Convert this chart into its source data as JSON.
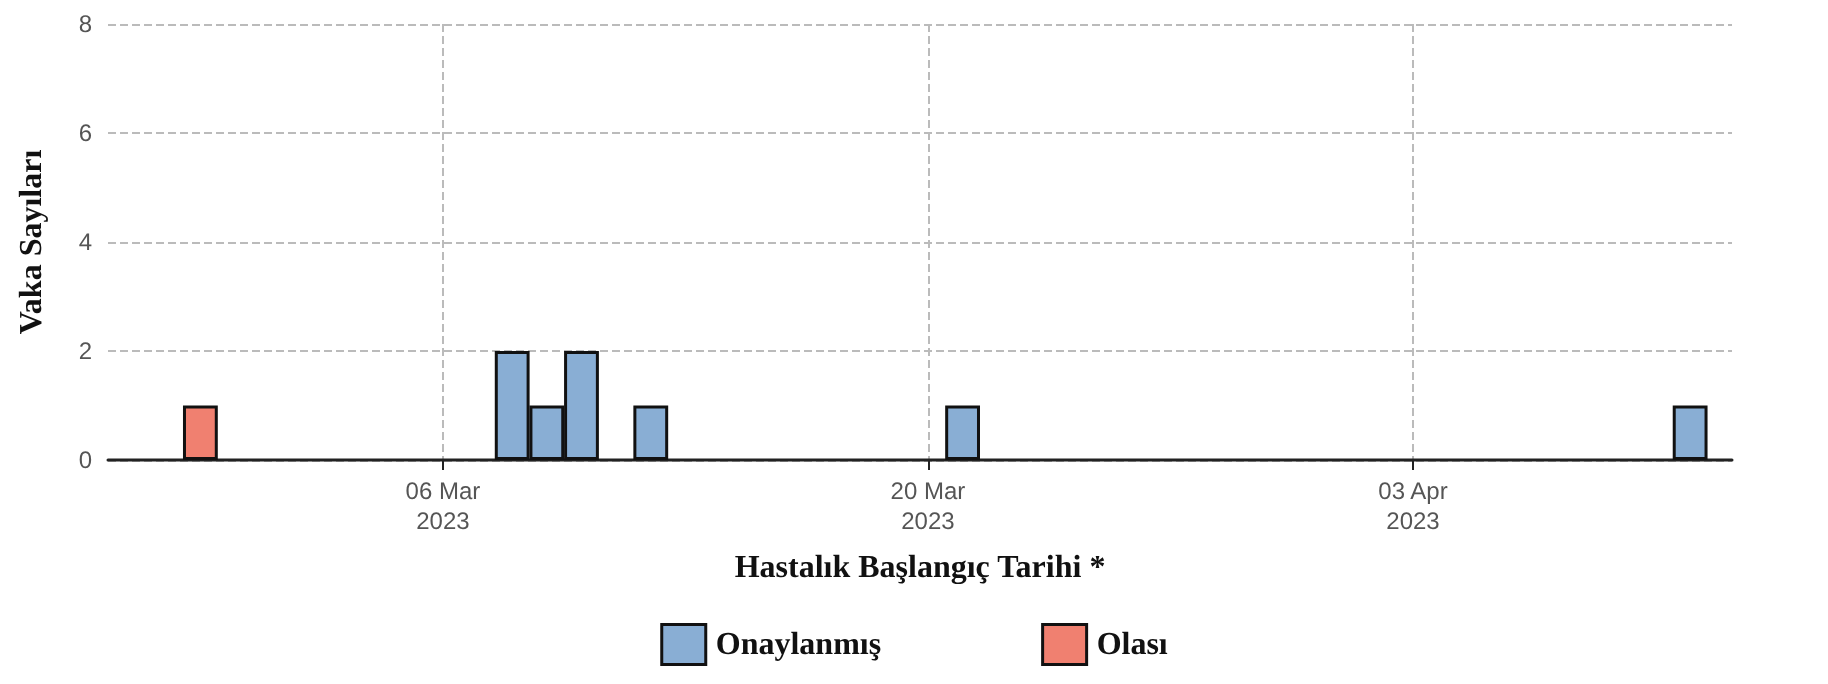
{
  "chart_data": {
    "type": "bar",
    "xlabel": "Hastalık Başlangıç Tarihi *",
    "ylabel": "Vaka Sayıları",
    "x": [
      "2023-02-27",
      "2023-03-08",
      "2023-03-09",
      "2023-03-10",
      "2023-03-12",
      "2023-03-21",
      "2023-04-11"
    ],
    "series": [
      {
        "name": "Onaylanmış",
        "color": "#89aed4",
        "values": [
          null,
          2,
          1,
          2,
          1,
          1,
          1
        ]
      },
      {
        "name": "Olası",
        "color": "#f08070",
        "values": [
          1,
          null,
          null,
          null,
          null,
          null,
          null
        ]
      }
    ],
    "xlim": [
      "2023-02-24T08:00",
      "2023-04-12T05:00"
    ],
    "xticks": [
      {
        "value": "2023-03-06",
        "label": "06 Mar\n2023"
      },
      {
        "value": "2023-03-20",
        "label": "20 Mar\n2023"
      },
      {
        "value": "2023-04-03",
        "label": "03 Apr\n2023"
      }
    ],
    "ylim": [
      0,
      8
    ],
    "yticks": [
      0,
      2,
      4,
      6,
      8
    ],
    "grid": true,
    "legend": "bottom"
  }
}
